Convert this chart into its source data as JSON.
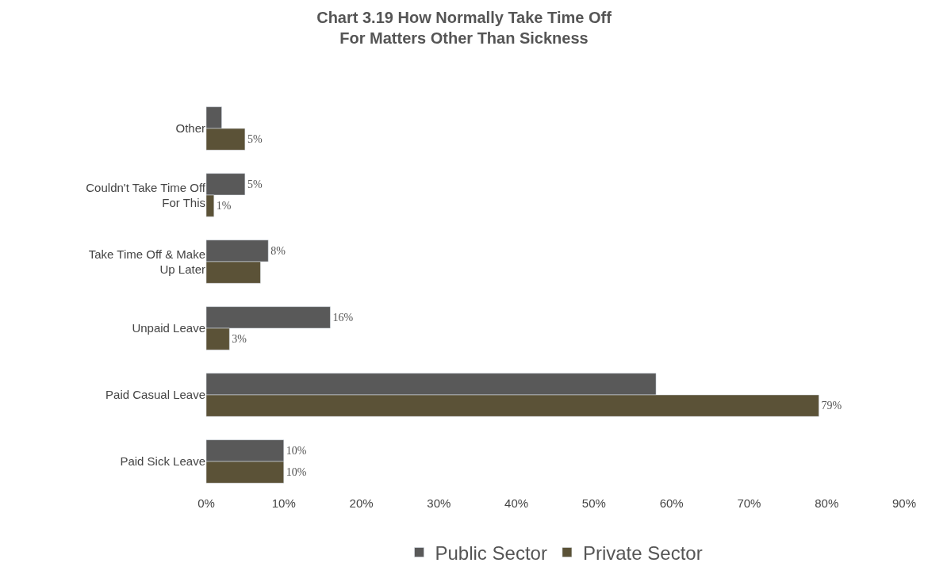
{
  "chart_data": {
    "type": "bar",
    "orientation": "horizontal",
    "title": "Chart 3.19 How Normally Take Time Off\nFor Matters Other Than Sickness",
    "categories": [
      "Other",
      "Couldn't Take Time Off\nFor This",
      "Take Time Off & Make\nUp Later",
      "Unpaid Leave",
      "Paid Casual Leave",
      "Paid Sick Leave"
    ],
    "series": [
      {
        "name": "Public Sector",
        "color": "#595959",
        "values": [
          2,
          5,
          8,
          16,
          58,
          10
        ],
        "value_labels": [
          null,
          "5%",
          "8%",
          "16%",
          null,
          "10%"
        ]
      },
      {
        "name": "Private Sector",
        "color": "#5b5237",
        "values": [
          5,
          1,
          7,
          3,
          79,
          10
        ],
        "value_labels": [
          "5%",
          "1%",
          null,
          "3%",
          "79%",
          "10%"
        ]
      }
    ],
    "xlim": [
      0,
      90
    ],
    "xticks": [
      {
        "value": 0,
        "label": "0%"
      },
      {
        "value": 10,
        "label": "10%"
      },
      {
        "value": 20,
        "label": "20%"
      },
      {
        "value": 30,
        "label": "30%"
      },
      {
        "value": 40,
        "label": "40%"
      },
      {
        "value": 50,
        "label": "50%"
      },
      {
        "value": 60,
        "label": "60%"
      },
      {
        "value": 70,
        "label": "70%"
      },
      {
        "value": 80,
        "label": "80%"
      },
      {
        "value": 90,
        "label": "90%"
      }
    ],
    "legend": "bottom"
  }
}
